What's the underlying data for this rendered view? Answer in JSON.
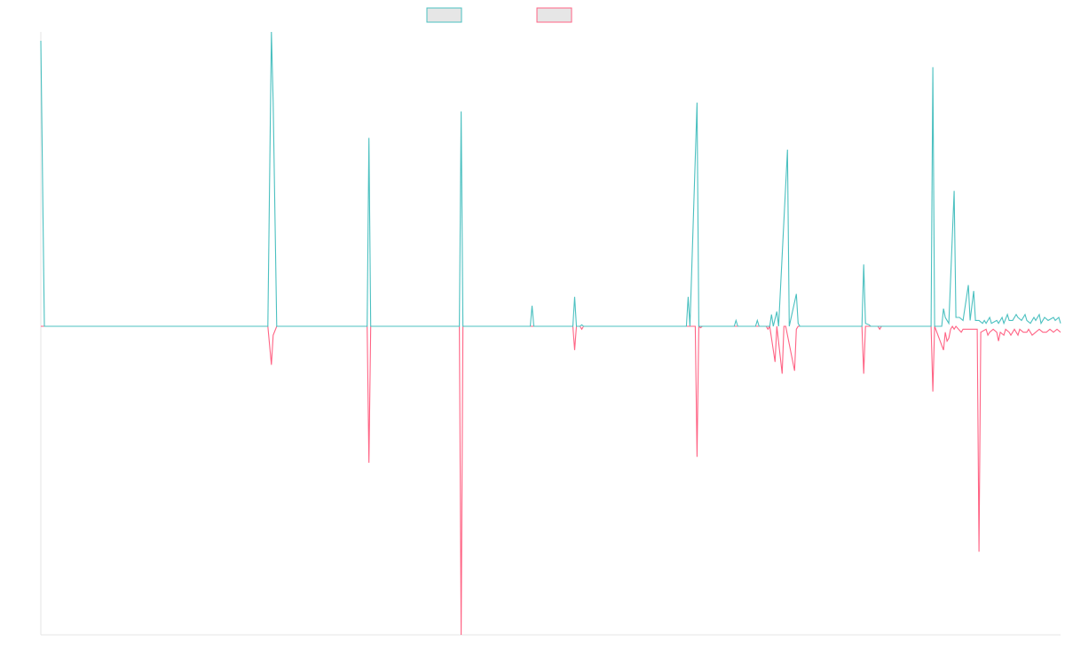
{
  "chart_data": {
    "type": "line",
    "x_range": [
      0,
      575
    ],
    "y_range": [
      -1,
      1
    ],
    "legend_position": "top-center",
    "grid": false,
    "series": [
      {
        "key": "teal",
        "color": "#4bc0c0",
        "fill_color": "#e6e6e6",
        "values": [
          [
            0,
            0.97
          ],
          [
            2,
            0
          ],
          [
            128,
            0
          ],
          [
            130,
            1.0
          ],
          [
            131,
            0.76
          ],
          [
            133,
            0
          ],
          [
            184,
            0
          ],
          [
            185,
            0.64
          ],
          [
            186,
            0
          ],
          [
            236,
            0
          ],
          [
            237,
            0.73
          ],
          [
            238,
            0
          ],
          [
            276,
            0
          ],
          [
            277,
            0.07
          ],
          [
            278,
            0
          ],
          [
            300,
            0
          ],
          [
            301,
            0.1
          ],
          [
            302,
            0
          ],
          [
            304,
            0
          ],
          [
            305,
            0.005
          ],
          [
            306,
            0
          ],
          [
            364,
            0
          ],
          [
            365,
            0.1
          ],
          [
            366,
            0
          ],
          [
            370,
            0.76
          ],
          [
            371,
            0
          ],
          [
            391,
            0
          ],
          [
            392,
            0.02
          ],
          [
            393,
            0
          ],
          [
            403,
            0
          ],
          [
            404,
            0.02
          ],
          [
            405,
            0
          ],
          [
            411,
            0
          ],
          [
            412,
            0.04
          ],
          [
            413,
            0
          ],
          [
            415,
            0.05
          ],
          [
            416,
            0
          ],
          [
            421,
            0.6
          ],
          [
            422,
            0
          ],
          [
            426,
            0.11
          ],
          [
            427,
            0.01
          ],
          [
            428,
            0
          ],
          [
            463,
            0
          ],
          [
            464,
            0.21
          ],
          [
            465,
            0.01
          ],
          [
            467,
            0.005
          ],
          [
            468,
            0
          ],
          [
            502,
            0
          ],
          [
            503,
            0.88
          ],
          [
            504,
            0
          ],
          [
            508,
            0
          ],
          [
            509,
            0.06
          ],
          [
            510,
            0.03
          ],
          [
            512,
            0.01
          ],
          [
            515,
            0.46
          ],
          [
            516,
            0.03
          ],
          [
            518,
            0.03
          ],
          [
            520,
            0.02
          ],
          [
            523,
            0.14
          ],
          [
            524,
            0.02
          ],
          [
            526,
            0.12
          ],
          [
            527,
            0.02
          ],
          [
            529,
            0.02
          ],
          [
            531,
            0.01
          ],
          [
            532,
            0.02
          ],
          [
            533,
            0.01
          ],
          [
            535,
            0.03
          ],
          [
            536,
            0.01
          ],
          [
            539,
            0.02
          ],
          [
            540,
            0.01
          ],
          [
            542,
            0.03
          ],
          [
            543,
            0.01
          ],
          [
            545,
            0.04
          ],
          [
            546,
            0.02
          ],
          [
            548,
            0.02
          ],
          [
            550,
            0.04
          ],
          [
            551,
            0.03
          ],
          [
            553,
            0.02
          ],
          [
            555,
            0.04
          ],
          [
            556,
            0.02
          ],
          [
            558,
            0.01
          ],
          [
            560,
            0.03
          ],
          [
            561,
            0.02
          ],
          [
            563,
            0.04
          ],
          [
            564,
            0.01
          ],
          [
            566,
            0.03
          ],
          [
            568,
            0.02
          ],
          [
            571,
            0.03
          ],
          [
            572,
            0.02
          ],
          [
            574,
            0.03
          ],
          [
            575,
            0.01
          ]
        ]
      },
      {
        "key": "pink",
        "color": "#ff6384",
        "fill_color": "#e6e6e6",
        "values": [
          [
            0,
            0.0
          ],
          [
            2,
            0
          ],
          [
            128,
            0
          ],
          [
            130,
            -0.13
          ],
          [
            131,
            -0.03
          ],
          [
            133,
            0
          ],
          [
            184,
            0
          ],
          [
            185,
            -0.46
          ],
          [
            186,
            0
          ],
          [
            236,
            0
          ],
          [
            237,
            -1.04
          ],
          [
            238,
            0
          ],
          [
            300,
            0
          ],
          [
            301,
            -0.08
          ],
          [
            302,
            0
          ],
          [
            304,
            0
          ],
          [
            305,
            -0.01
          ],
          [
            306,
            0
          ],
          [
            369,
            0
          ],
          [
            370,
            -0.44
          ],
          [
            371,
            0
          ],
          [
            372,
            -0.005
          ],
          [
            373,
            0
          ],
          [
            406,
            0
          ],
          [
            409,
            0
          ],
          [
            410,
            -0.01
          ],
          [
            411,
            0
          ],
          [
            414,
            -0.12
          ],
          [
            415,
            0
          ],
          [
            418,
            -0.16
          ],
          [
            419,
            0
          ],
          [
            420,
            0
          ],
          [
            425,
            -0.15
          ],
          [
            426,
            -0.01
          ],
          [
            427,
            0
          ],
          [
            463,
            0
          ],
          [
            464,
            -0.16
          ],
          [
            465,
            0
          ],
          [
            472,
            0
          ],
          [
            473,
            -0.01
          ],
          [
            474,
            0
          ],
          [
            502,
            0
          ],
          [
            503,
            -0.22
          ],
          [
            504,
            0
          ],
          [
            509,
            -0.08
          ],
          [
            510,
            -0.02
          ],
          [
            511,
            -0.05
          ],
          [
            512,
            -0.04
          ],
          [
            513,
            -0.01
          ],
          [
            514,
            0
          ],
          [
            515,
            -0.01
          ],
          [
            516,
            0
          ],
          [
            519,
            -0.02
          ],
          [
            520,
            -0.01
          ],
          [
            522,
            -0.01
          ],
          [
            528,
            -0.01
          ],
          [
            529,
            -0.76
          ],
          [
            530,
            -0.02
          ],
          [
            533,
            -0.01
          ],
          [
            534,
            -0.03
          ],
          [
            535,
            -0.02
          ],
          [
            537,
            -0.01
          ],
          [
            539,
            -0.02
          ],
          [
            540,
            -0.05
          ],
          [
            541,
            -0.02
          ],
          [
            543,
            -0.03
          ],
          [
            544,
            -0.01
          ],
          [
            546,
            -0.02
          ],
          [
            547,
            -0.03
          ],
          [
            548,
            -0.02
          ],
          [
            549,
            -0.01
          ],
          [
            551,
            -0.03
          ],
          [
            552,
            -0.01
          ],
          [
            554,
            -0.02
          ],
          [
            556,
            -0.02
          ],
          [
            557,
            -0.01
          ],
          [
            559,
            -0.03
          ],
          [
            561,
            -0.02
          ],
          [
            563,
            -0.01
          ],
          [
            565,
            -0.02
          ],
          [
            567,
            -0.02
          ],
          [
            569,
            -0.01
          ],
          [
            571,
            -0.02
          ],
          [
            573,
            -0.01
          ],
          [
            575,
            -0.02
          ]
        ]
      }
    ]
  }
}
